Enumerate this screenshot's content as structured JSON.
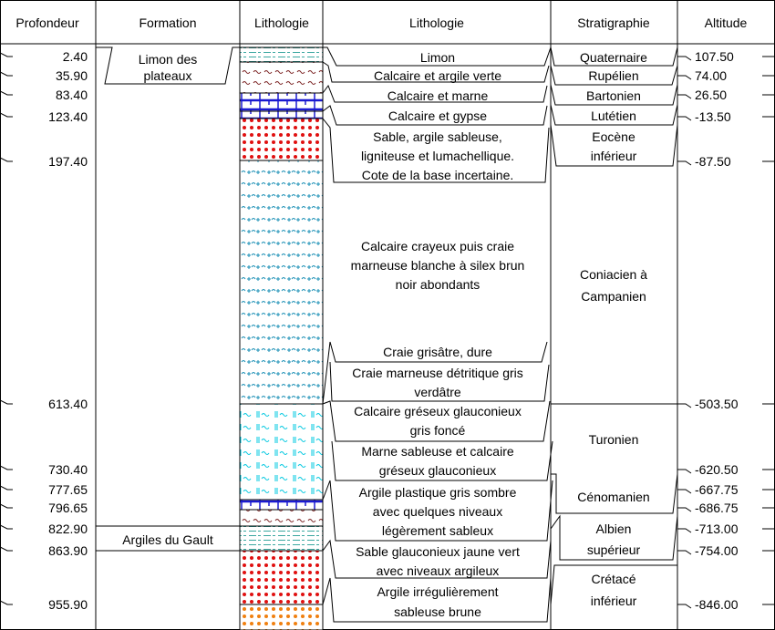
{
  "headers": {
    "depth": "Profondeur",
    "formation": "Formation",
    "litho_col": "Lithologie",
    "litho_desc": "Lithologie",
    "strat": "Stratigraphie",
    "alt": "Altitude"
  },
  "depths": [
    "2.40",
    "35.90",
    "83.40",
    "123.40",
    "197.40",
    "613.40",
    "730.40",
    "777.65",
    "796.65",
    "822.90",
    "863.90",
    "955.90"
  ],
  "altitudes": [
    "107.50",
    "74.00",
    "26.50",
    "-13.50",
    "-87.50",
    "-503.50",
    "-620.50",
    "-667.75",
    "-686.75",
    "-713.00",
    "-754.00",
    "-846.00"
  ],
  "formations": {
    "f1": [
      "Limon des",
      "plateaux"
    ],
    "f2": "Argiles du Gault"
  },
  "litho_descriptions": {
    "d1": [
      "Limon"
    ],
    "d2": [
      "Calcaire et argile verte"
    ],
    "d3": [
      "Calcaire et marne"
    ],
    "d4": [
      "Calcaire et gypse"
    ],
    "d5": [
      "Sable, argile sableuse,",
      "ligniteuse et lumachellique.",
      "Cote de la base incertaine."
    ],
    "d6": [
      "Calcaire crayeux puis craie",
      "marneuse blanche à silex brun",
      "noir abondants"
    ],
    "d7": [
      "Craie grisâtre, dure"
    ],
    "d8": [
      "Craie marneuse détritique gris",
      "verdâtre"
    ],
    "d9": [
      "Calcaire gréseux glauconieux",
      "gris foncé"
    ],
    "d10": [
      "Marne sableuse et calcaire",
      "gréseux glauconieux"
    ],
    "d11": [
      "Argile plastique gris sombre",
      "avec quelques niveaux",
      "légèrement sableux"
    ],
    "d12": [
      "Sable glauconieux jaune vert",
      "avec niveaux argileux"
    ],
    "d13": [
      "Argile irrégulièrement",
      "sableuse brune"
    ]
  },
  "stratigraphy": {
    "s1": [
      "Quaternaire"
    ],
    "s2": [
      "Rupélien"
    ],
    "s3": [
      "Bartonien"
    ],
    "s4": [
      "Lutétien"
    ],
    "s5": [
      "Eocène",
      "inférieur"
    ],
    "s6": [
      "Coniacien à",
      "Campanien"
    ],
    "s7": [
      "Turonien"
    ],
    "s8": [
      "Cénomanien"
    ],
    "s9": [
      "Albien",
      "supérieur"
    ],
    "s10": [
      "Crétacé",
      "inférieur"
    ]
  },
  "colors": {
    "limon": "#3aa7a0",
    "argile": "#7a2020",
    "calcaire": "#1a1ad0",
    "sable": "#e01010",
    "craie": "#1a8fb5",
    "glauconie": "#00c8e0",
    "sable_brun": "#f08010"
  }
}
